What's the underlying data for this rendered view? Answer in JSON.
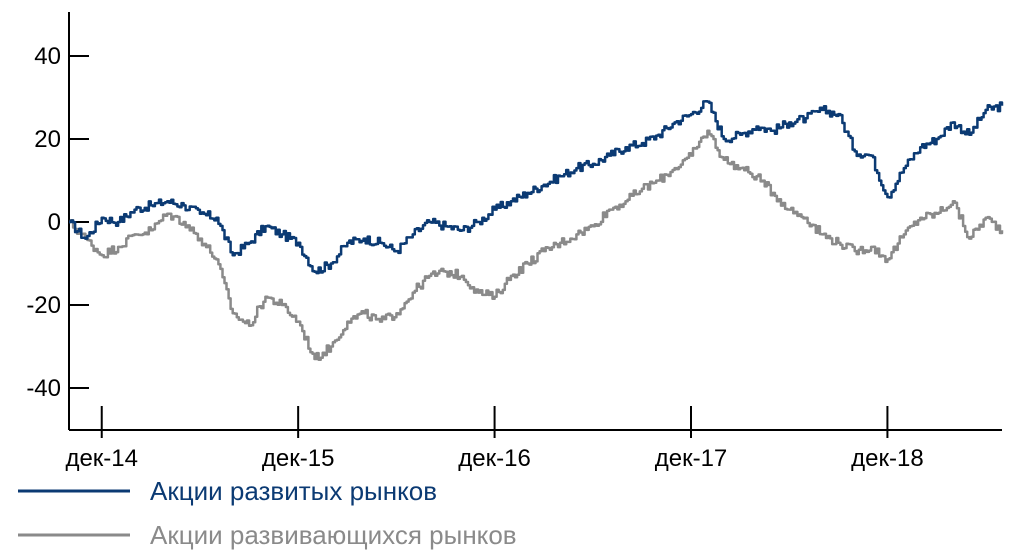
{
  "chart_data": {
    "type": "line",
    "title": "",
    "xlabel": "",
    "ylabel": "",
    "ylim": [
      -50,
      50
    ],
    "yticks": [
      40,
      20,
      0,
      -20,
      -40
    ],
    "ytick_labels": [
      "40",
      "20",
      "0",
      "-20",
      "-40"
    ],
    "x_range": [
      "2014-10",
      "2019-07"
    ],
    "xticks": [
      "2014-12",
      "2015-12",
      "2016-12",
      "2017-12",
      "2018-12"
    ],
    "xtick_labels": [
      "дек-14",
      "дек-15",
      "дек-16",
      "дек-17",
      "дек-18"
    ],
    "grid": false,
    "legend_position": "bottom-left",
    "series": [
      {
        "name": "Акции развитых рынков",
        "color": "#0b3a73",
        "points": [
          [
            "2014-10",
            0
          ],
          [
            "2014-11",
            -4
          ],
          [
            "2014-12",
            1
          ],
          [
            "2015-01",
            0
          ],
          [
            "2015-02",
            3
          ],
          [
            "2015-03",
            4
          ],
          [
            "2015-04",
            5
          ],
          [
            "2015-05",
            4
          ],
          [
            "2015-06",
            2
          ],
          [
            "2015-07",
            1
          ],
          [
            "2015-08",
            -8
          ],
          [
            "2015-09",
            -5
          ],
          [
            "2015-10",
            -1
          ],
          [
            "2015-11",
            -3
          ],
          [
            "2015-12",
            -5
          ],
          [
            "2016-01",
            -12
          ],
          [
            "2016-02",
            -10
          ],
          [
            "2016-03",
            -5
          ],
          [
            "2016-04",
            -4
          ],
          [
            "2016-05",
            -5
          ],
          [
            "2016-06",
            -7
          ],
          [
            "2016-07",
            -3
          ],
          [
            "2016-08",
            0
          ],
          [
            "2016-09",
            -1
          ],
          [
            "2016-10",
            -2
          ],
          [
            "2016-11",
            0
          ],
          [
            "2016-12",
            3
          ],
          [
            "2017-01",
            5
          ],
          [
            "2017-02",
            7
          ],
          [
            "2017-03",
            9
          ],
          [
            "2017-04",
            11
          ],
          [
            "2017-05",
            13
          ],
          [
            "2017-06",
            14
          ],
          [
            "2017-07",
            16
          ],
          [
            "2017-08",
            18
          ],
          [
            "2017-09",
            19
          ],
          [
            "2017-10",
            21
          ],
          [
            "2017-11",
            24
          ],
          [
            "2017-12",
            26
          ],
          [
            "2018-01",
            29
          ],
          [
            "2018-02",
            20
          ],
          [
            "2018-03",
            21
          ],
          [
            "2018-04",
            23
          ],
          [
            "2018-05",
            22
          ],
          [
            "2018-06",
            24
          ],
          [
            "2018-07",
            25
          ],
          [
            "2018-08",
            27
          ],
          [
            "2018-09",
            26
          ],
          [
            "2018-10",
            17
          ],
          [
            "2018-11",
            16
          ],
          [
            "2018-12",
            6
          ],
          [
            "2019-01",
            13
          ],
          [
            "2019-02",
            18
          ],
          [
            "2019-03",
            20
          ],
          [
            "2019-04",
            24
          ],
          [
            "2019-05",
            21
          ],
          [
            "2019-06",
            27
          ],
          [
            "2019-07",
            28
          ]
        ]
      },
      {
        "name": "Акции развивающихся рынков",
        "color": "#8a8a8a",
        "points": [
          [
            "2014-10",
            0
          ],
          [
            "2014-11",
            -4
          ],
          [
            "2014-12",
            -8
          ],
          [
            "2015-01",
            -6
          ],
          [
            "2015-02",
            -3
          ],
          [
            "2015-03",
            -2
          ],
          [
            "2015-04",
            2
          ],
          [
            "2015-05",
            0
          ],
          [
            "2015-06",
            -4
          ],
          [
            "2015-07",
            -9
          ],
          [
            "2015-08",
            -22
          ],
          [
            "2015-09",
            -25
          ],
          [
            "2015-10",
            -18
          ],
          [
            "2015-11",
            -20
          ],
          [
            "2015-12",
            -24
          ],
          [
            "2016-01",
            -33
          ],
          [
            "2016-02",
            -30
          ],
          [
            "2016-03",
            -24
          ],
          [
            "2016-04",
            -22
          ],
          [
            "2016-05",
            -24
          ],
          [
            "2016-06",
            -22
          ],
          [
            "2016-07",
            -17
          ],
          [
            "2016-08",
            -13
          ],
          [
            "2016-09",
            -12
          ],
          [
            "2016-10",
            -13
          ],
          [
            "2016-11",
            -17
          ],
          [
            "2016-12",
            -18
          ],
          [
            "2017-01",
            -13
          ],
          [
            "2017-02",
            -10
          ],
          [
            "2017-03",
            -7
          ],
          [
            "2017-04",
            -5
          ],
          [
            "2017-05",
            -3
          ],
          [
            "2017-06",
            -1
          ],
          [
            "2017-07",
            3
          ],
          [
            "2017-08",
            5
          ],
          [
            "2017-09",
            8
          ],
          [
            "2017-10",
            10
          ],
          [
            "2017-11",
            13
          ],
          [
            "2017-12",
            16
          ],
          [
            "2018-01",
            22
          ],
          [
            "2018-02",
            15
          ],
          [
            "2018-03",
            13
          ],
          [
            "2018-04",
            11
          ],
          [
            "2018-05",
            7
          ],
          [
            "2018-06",
            3
          ],
          [
            "2018-07",
            1
          ],
          [
            "2018-08",
            -3
          ],
          [
            "2018-09",
            -5
          ],
          [
            "2018-10",
            -7
          ],
          [
            "2018-11",
            -6
          ],
          [
            "2018-12",
            -9
          ],
          [
            "2019-01",
            -3
          ],
          [
            "2019-02",
            1
          ],
          [
            "2019-03",
            2
          ],
          [
            "2019-04",
            5
          ],
          [
            "2019-05",
            -4
          ],
          [
            "2019-06",
            1
          ],
          [
            "2019-07",
            -2
          ]
        ]
      }
    ]
  }
}
